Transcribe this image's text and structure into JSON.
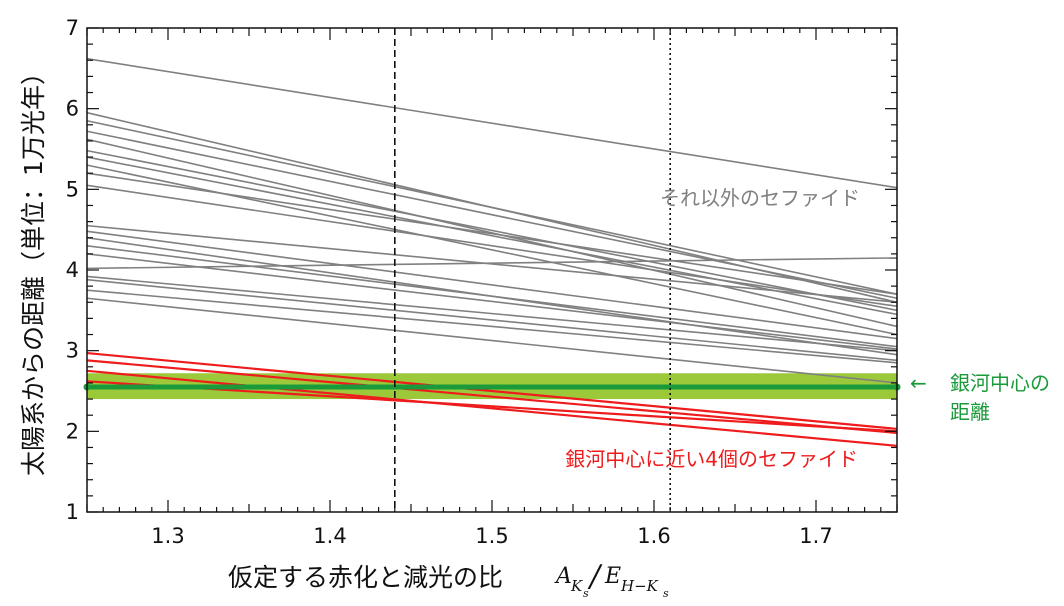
{
  "chart_data": {
    "type": "line",
    "xlabel": "仮定する赤化と減光の比",
    "xlabel_math": {
      "A": "A",
      "A_sub": "K",
      "A_subsub": "s",
      "slash": "/",
      "E": "E",
      "E_sub": "H−K",
      "E_subsub": "s"
    },
    "ylabel": "太陽系からの距離（単位：1万光年）",
    "xlim": [
      1.25,
      1.75
    ],
    "ylim": [
      1,
      7
    ],
    "x_ticks": [
      "1.3",
      "1.4",
      "1.5",
      "1.6",
      "1.7"
    ],
    "y_ticks": [
      "1",
      "2",
      "3",
      "4",
      "5",
      "6",
      "7"
    ],
    "vlines": [
      {
        "x": 1.44,
        "style": "dashed"
      },
      {
        "x": 1.61,
        "style": "dotted"
      }
    ],
    "galactic_center": {
      "distance": 2.55,
      "band": [
        2.4,
        2.72
      ],
      "label_arrow": "←",
      "label": [
        "銀河中心の",
        "距離"
      ]
    },
    "series": [
      {
        "name": "それ以外のセファイド",
        "color": "#808080",
        "lines": [
          [
            6.62,
            5.02
          ],
          [
            5.95,
            3.6
          ],
          [
            5.85,
            3.7
          ],
          [
            5.72,
            3.65
          ],
          [
            5.62,
            3.3
          ],
          [
            5.48,
            3.5
          ],
          [
            5.4,
            3.45
          ],
          [
            5.3,
            3.2
          ],
          [
            5.2,
            3.7
          ],
          [
            5.05,
            3.55
          ],
          [
            4.55,
            3.6
          ],
          [
            4.48,
            3.15
          ],
          [
            4.4,
            2.95
          ],
          [
            4.3,
            3.05
          ],
          [
            4.2,
            3.02
          ],
          [
            4.02,
            4.15
          ],
          [
            3.92,
            3.0
          ],
          [
            3.88,
            2.88
          ],
          [
            3.75,
            2.85
          ],
          [
            3.65,
            2.6
          ]
        ]
      },
      {
        "name": "銀河中心に近い4個のセファイド",
        "color": "#ee1c1c",
        "lines": [
          [
            2.97,
            2.03
          ],
          [
            2.88,
            1.98
          ],
          [
            2.75,
            1.82
          ],
          [
            2.62,
            2.0
          ]
        ]
      }
    ],
    "colors": {
      "other": "#808080",
      "near": "#ee1c1c",
      "band": "#9cc93a",
      "center_line": "#1a9a3a"
    }
  }
}
